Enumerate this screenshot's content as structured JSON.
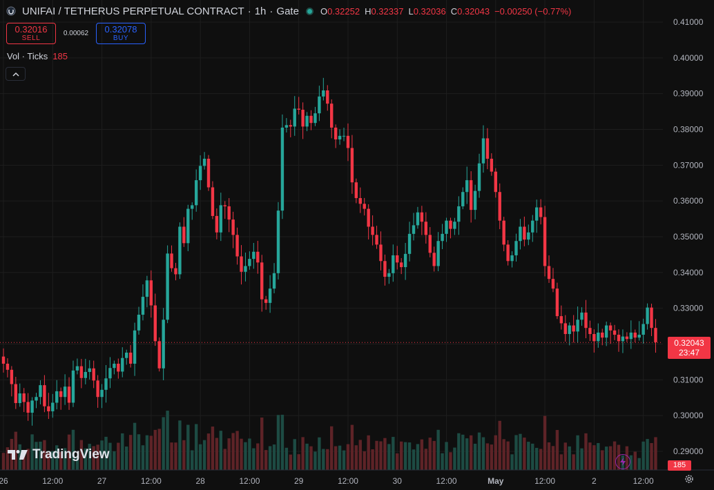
{
  "header": {
    "symbol": "UNIFAI / TETHERUS PERPETUAL CONTRACT",
    "interval": "1h",
    "exchange": "Gate",
    "ohlc": [
      {
        "key": "O",
        "value": "0.32252"
      },
      {
        "key": "H",
        "value": "0.32337"
      },
      {
        "key": "L",
        "value": "0.32036"
      },
      {
        "key": "C",
        "value": "0.32043"
      }
    ],
    "change": "−0.00250 (−0.77%)"
  },
  "trade": {
    "sell_price": "0.32016",
    "sell_label": "SELL",
    "spread": "0.00062",
    "buy_price": "0.32078",
    "buy_label": "BUY"
  },
  "volume_legend": {
    "label": "Vol · Ticks",
    "value": "185"
  },
  "last_price": {
    "price": "0.32043",
    "countdown": "23:47"
  },
  "volume_last": "185",
  "logo_text": "TradingView",
  "colors": {
    "up": "#26a69a",
    "down": "#f23645",
    "background": "#0f0f0f",
    "buy": "#2962ff"
  },
  "icons": [
    "status-dot-icon",
    "chevron-up-icon",
    "lightning-icon",
    "settings-gear-icon",
    "tradingview-logo-icon"
  ],
  "chart_data": {
    "type": "candlestick",
    "title": "UNIFAI / TETHERUS PERPETUAL CONTRACT · 1h · Gate",
    "y_range": [
      0.285,
      0.415
    ],
    "y_ticks": [
      "0.41000",
      "0.40000",
      "0.39000",
      "0.38000",
      "0.37000",
      "0.36000",
      "0.35000",
      "0.34000",
      "0.33000",
      "0.32000",
      "0.31000",
      "0.30000",
      "0.29000"
    ],
    "x_ticks": [
      {
        "label": "26",
        "index": 0
      },
      {
        "label": "12:00",
        "index": 12
      },
      {
        "label": "27",
        "index": 24
      },
      {
        "label": "12:00",
        "index": 36
      },
      {
        "label": "28",
        "index": 48
      },
      {
        "label": "12:00",
        "index": 60
      },
      {
        "label": "29",
        "index": 72
      },
      {
        "label": "12:00",
        "index": 84
      },
      {
        "label": "30",
        "index": 96
      },
      {
        "label": "12:00",
        "index": 108
      },
      {
        "label": "May",
        "index": 120
      },
      {
        "label": "12:00",
        "index": 132
      },
      {
        "label": "2",
        "index": 144
      },
      {
        "label": "12:00",
        "index": 156
      }
    ],
    "grid": true,
    "series_close": [
      0.3145,
      0.3128,
      0.3088,
      0.3035,
      0.3062,
      0.3038,
      0.3008,
      0.3042,
      0.3052,
      0.3085,
      0.3026,
      0.3012,
      0.3036,
      0.3068,
      0.3052,
      0.3081,
      0.3036,
      0.3126,
      0.3138,
      0.3105,
      0.3122,
      0.3132,
      0.3098,
      0.3052,
      0.3072,
      0.3104,
      0.3133,
      0.3145,
      0.3123,
      0.3161,
      0.3176,
      0.3145,
      0.3238,
      0.3282,
      0.3332,
      0.3378,
      0.3308,
      0.3208,
      0.3132,
      0.3268,
      0.3453,
      0.3412,
      0.3395,
      0.3528,
      0.3482,
      0.3578,
      0.3588,
      0.3658,
      0.3698,
      0.3718,
      0.3638,
      0.3558,
      0.3512,
      0.3588,
      0.3585,
      0.3548,
      0.3505,
      0.3445,
      0.3402,
      0.3418,
      0.3438,
      0.3458,
      0.3428,
      0.3325,
      0.3315,
      0.3355,
      0.3398,
      0.3573,
      0.3805,
      0.3812,
      0.3808,
      0.3858,
      0.3855,
      0.3808,
      0.3838,
      0.3818,
      0.3845,
      0.3892,
      0.3909,
      0.3872,
      0.3805,
      0.3772,
      0.3782,
      0.3782,
      0.3748,
      0.3652,
      0.3608,
      0.3592,
      0.3578,
      0.3528,
      0.3505,
      0.3478,
      0.3432,
      0.3388,
      0.3398,
      0.3448,
      0.3428,
      0.3415,
      0.3452,
      0.3508,
      0.3532,
      0.3568,
      0.3542,
      0.3505,
      0.3455,
      0.3418,
      0.3488,
      0.3508,
      0.3545,
      0.3522,
      0.3542,
      0.3585,
      0.3625,
      0.3658,
      0.3575,
      0.3628,
      0.3705,
      0.3775,
      0.3718,
      0.3682,
      0.3625,
      0.3545,
      0.3478,
      0.3432,
      0.3448,
      0.3488,
      0.3528,
      0.3492,
      0.3512,
      0.3545,
      0.3582,
      0.3555,
      0.3418,
      0.3382,
      0.3355,
      0.3278,
      0.3258,
      0.3228,
      0.3252,
      0.3235,
      0.3268,
      0.3288,
      0.3245,
      0.3228,
      0.3208,
      0.3232,
      0.3218,
      0.3252,
      0.3238,
      0.3226,
      0.3208,
      0.3221,
      0.3214,
      0.3232,
      0.3218,
      0.3226,
      0.3256,
      0.3302,
      0.3245,
      0.3205
    ],
    "volume_scale_max": 100,
    "volume_last": 185,
    "last_price": 0.32043
  }
}
